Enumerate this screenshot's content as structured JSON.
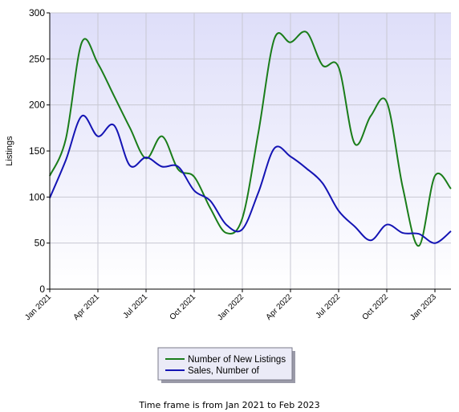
{
  "chart_data": {
    "type": "line",
    "ylabel": "Listings",
    "ylim": [
      0,
      300
    ],
    "yticks": [
      0,
      50,
      100,
      150,
      200,
      250,
      300
    ],
    "x_categories": [
      "Jan 2021",
      "Feb 2021",
      "Mar 2021",
      "Apr 2021",
      "May 2021",
      "Jun 2021",
      "Jul 2021",
      "Aug 2021",
      "Sep 2021",
      "Oct 2021",
      "Nov 2021",
      "Dec 2021",
      "Jan 2022",
      "Feb 2022",
      "Mar 2022",
      "Apr 2022",
      "May 2022",
      "Jun 2022",
      "Jul 2022",
      "Aug 2022",
      "Sep 2022",
      "Oct 2022",
      "Nov 2022",
      "Dec 2022",
      "Jan 2023",
      "Feb 2023"
    ],
    "xtick_labels": [
      "Jan 2021",
      "Apr 2021",
      "Jul 2021",
      "Oct 2021",
      "Jan 2022",
      "Apr 2022",
      "Jul 2022",
      "Oct 2022",
      "Jan 2023"
    ],
    "grid": true,
    "legend_position": "bottom",
    "series": [
      {
        "name": "Number of New Listings",
        "color": "#1a7d1a",
        "values": [
          123,
          163,
          268,
          245,
          210,
          175,
          142,
          166,
          130,
          122,
          88,
          61,
          77,
          170,
          272,
          268,
          279,
          243,
          241,
          158,
          188,
          203,
          110,
          47,
          123,
          109
        ]
      },
      {
        "name": "Sales, Number of",
        "color": "#1414b4",
        "values": [
          99,
          140,
          188,
          166,
          178,
          134,
          143,
          133,
          133,
          107,
          96,
          70,
          65,
          105,
          153,
          144,
          131,
          115,
          85,
          68,
          53,
          70,
          61,
          60,
          50,
          63
        ]
      }
    ]
  },
  "footer_text": "Time frame is from Jan 2021 to Feb 2023",
  "colors": {
    "plot_background_top": "#dedef9",
    "plot_background_bottom": "#ffffff",
    "grid": "#c8c8d2"
  }
}
